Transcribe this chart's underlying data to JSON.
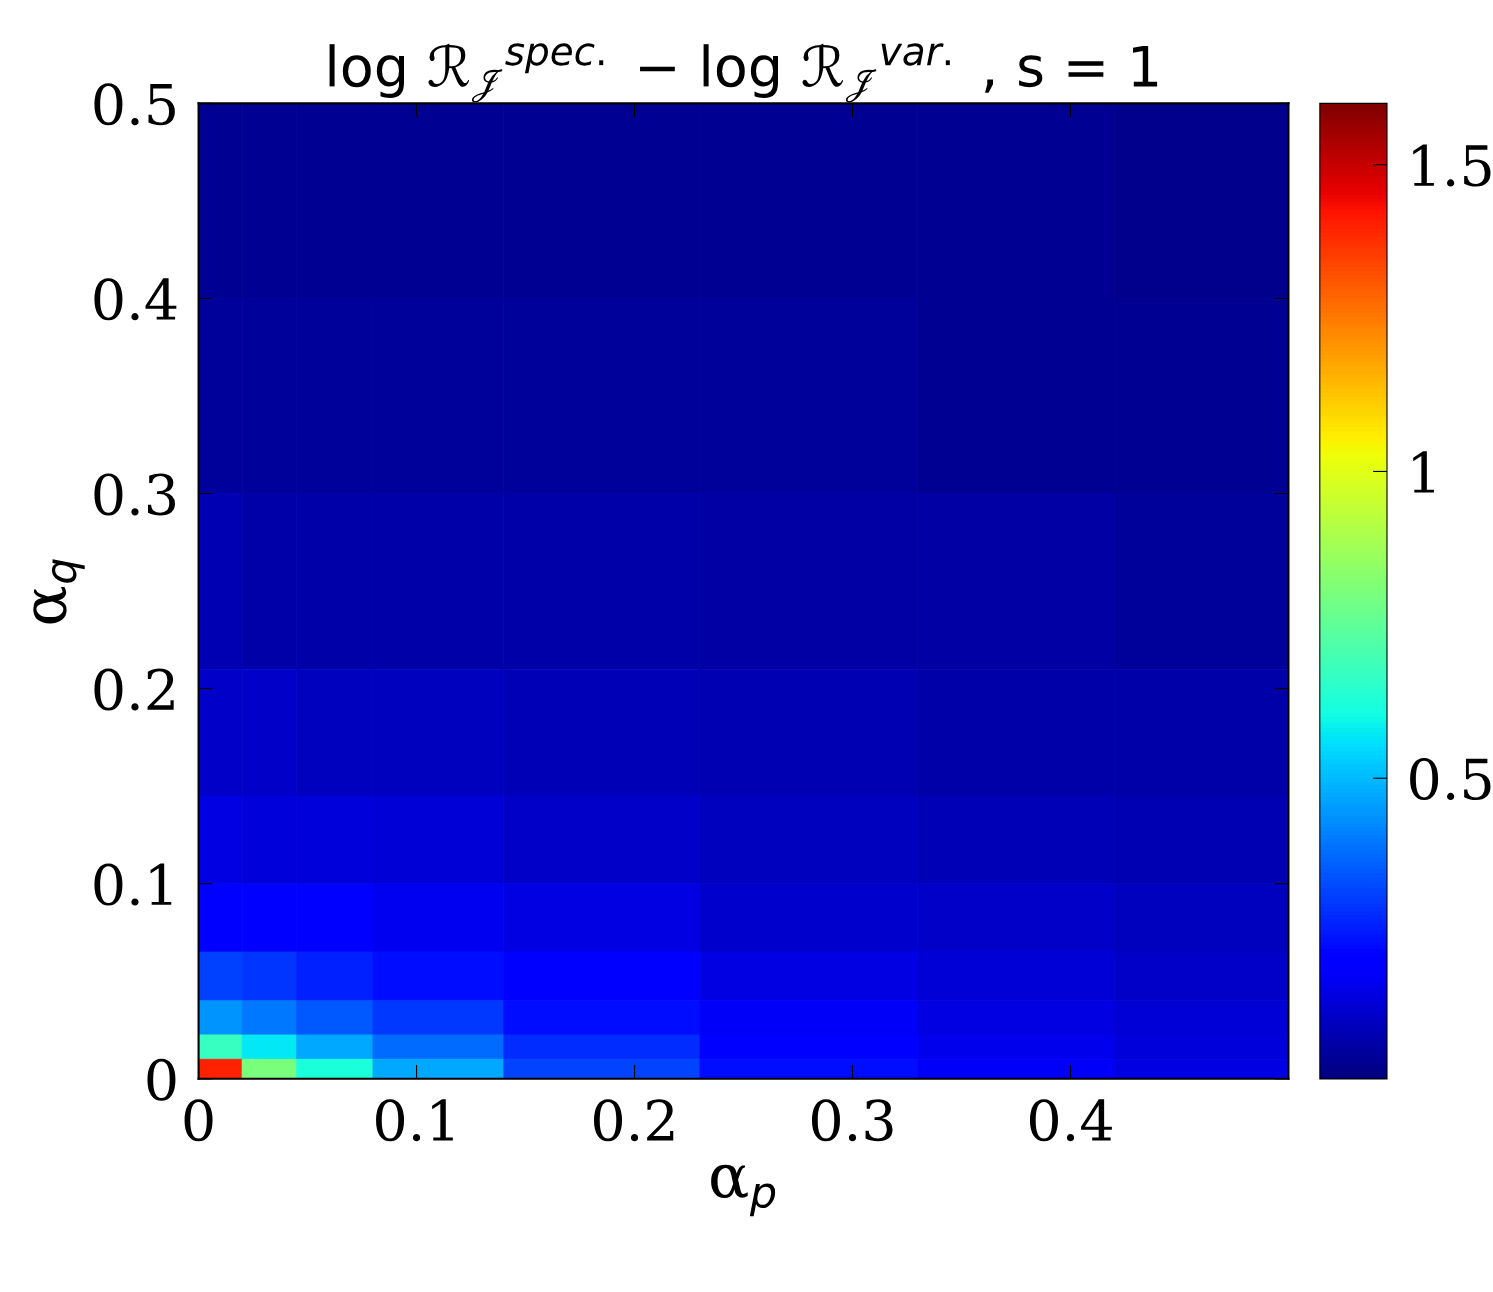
{
  "chart_data": {
    "type": "heatmap",
    "title": "log ℛ$_{𝒥}$$^{spec.}$ − log ℛ$_{𝒥}$$^{var.}$ , s = 1",
    "xlabel": "α$_{p}$",
    "ylabel": "α$_{q}$",
    "x": [
      0.01,
      0.03,
      0.06,
      0.1,
      0.18,
      0.28,
      0.38,
      0.46
    ],
    "y": [
      0.45,
      0.35,
      0.25,
      0.17,
      0.12,
      0.08,
      0.05,
      0.03,
      0.015,
      0.005
    ],
    "cells": [
      [
        0.04,
        0.04,
        0.04,
        0.04,
        0.04,
        0.04,
        0.04,
        0.03
      ],
      [
        0.05,
        0.05,
        0.05,
        0.05,
        0.05,
        0.05,
        0.04,
        0.04
      ],
      [
        0.08,
        0.07,
        0.07,
        0.07,
        0.07,
        0.06,
        0.06,
        0.05
      ],
      [
        0.11,
        0.11,
        0.1,
        0.1,
        0.09,
        0.08,
        0.07,
        0.07
      ],
      [
        0.15,
        0.14,
        0.14,
        0.13,
        0.11,
        0.1,
        0.09,
        0.08
      ],
      [
        0.21,
        0.2,
        0.19,
        0.17,
        0.15,
        0.12,
        0.11,
        0.1
      ],
      [
        0.31,
        0.29,
        0.26,
        0.23,
        0.19,
        0.15,
        0.13,
        0.11
      ],
      [
        0.44,
        0.4,
        0.35,
        0.3,
        0.23,
        0.18,
        0.15,
        0.13
      ],
      [
        0.67,
        0.57,
        0.47,
        0.38,
        0.28,
        0.21,
        0.16,
        0.14
      ],
      [
        1.4,
        0.8,
        0.62,
        0.47,
        0.32,
        0.23,
        0.18,
        0.15
      ]
    ],
    "xlim": [
      0,
      0.5
    ],
    "xticks": [
      0,
      0.1,
      0.2,
      0.3,
      0.4
    ],
    "ylim": [
      0,
      0.5
    ],
    "yticks": [
      0,
      0.1,
      0.2,
      0.3,
      0.4,
      0.5
    ],
    "clim": [
      0.01,
      1.6
    ],
    "cticks": [
      0.5,
      1,
      1.5
    ],
    "grid": false
  }
}
